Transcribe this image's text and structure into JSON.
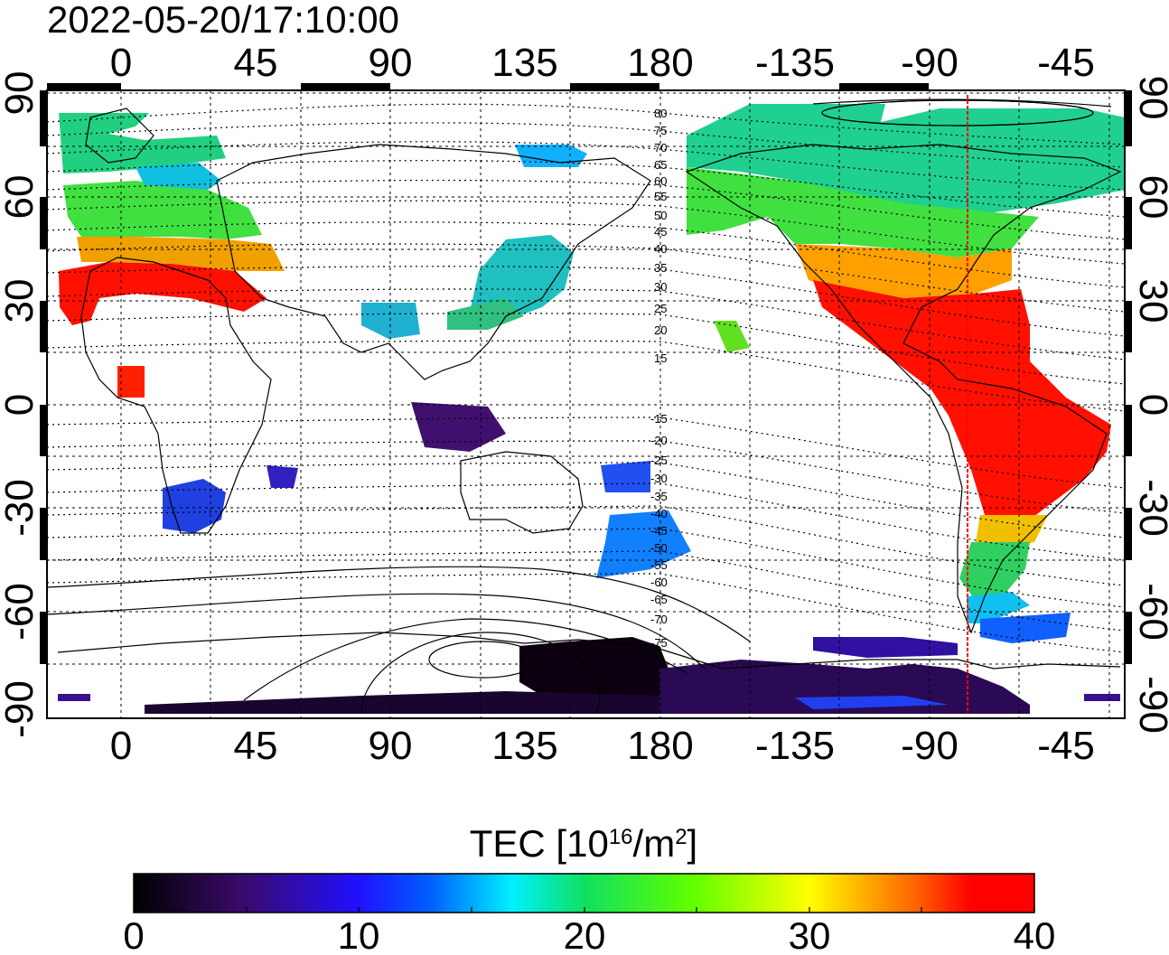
{
  "timestamp": "2022-05-20/17:10:00",
  "map": {
    "lon_center": 135,
    "lat_range": [
      -90,
      90
    ],
    "grid": true,
    "top_lon_ticks": [
      "0",
      "45",
      "90",
      "135",
      "180",
      "-135",
      "-90",
      "-45"
    ],
    "bottom_lon_ticks": [
      "0",
      "45",
      "90",
      "135",
      "180",
      "-135",
      "-90",
      "-45"
    ],
    "left_lat_ticks": [
      "90",
      "60",
      "30",
      "0",
      "-30",
      "-60",
      "-90"
    ],
    "right_lat_ticks": [
      "90",
      "60",
      "30",
      "0",
      "-30",
      "-60",
      "-90"
    ],
    "terminator_lon": -77,
    "terminator_color": "#ff0000",
    "contour_labels": [
      "80",
      "75",
      "70",
      "65",
      "60",
      "55",
      "50",
      "45",
      "40",
      "35",
      "30",
      "25",
      "20",
      "15",
      "-15",
      "-20",
      "-25",
      "-30",
      "-35",
      "-40",
      "-45",
      "-50",
      "-55",
      "-60",
      "-65",
      "-70",
      "-75"
    ]
  },
  "colorbar": {
    "label_main": "TEC  [10",
    "label_sup1": "16",
    "label_mid": "/m",
    "label_sup2": "2",
    "label_end": "]",
    "ticks": [
      "0",
      "10",
      "20",
      "30",
      "40"
    ],
    "min": 0,
    "max": 40
  }
}
